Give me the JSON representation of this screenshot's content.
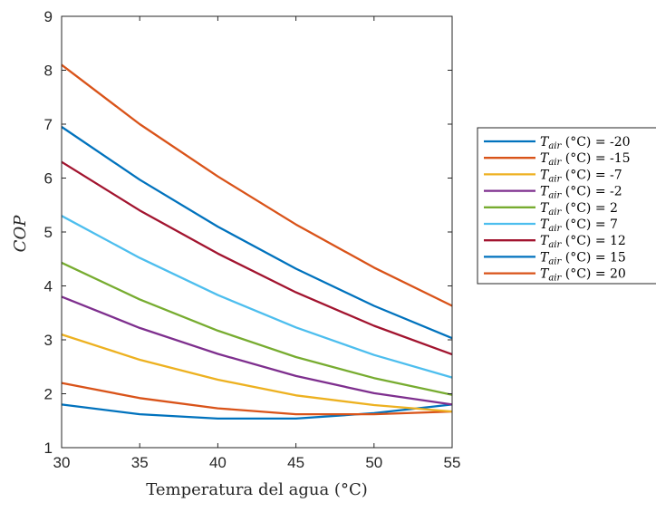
{
  "chart_data": {
    "type": "line",
    "xlabel": "Temperatura del agua (°C)",
    "ylabel": "COP",
    "xlim": [
      30,
      55
    ],
    "ylim": [
      1,
      9
    ],
    "x_ticks": [
      30,
      35,
      40,
      45,
      50,
      55
    ],
    "y_ticks": [
      1,
      2,
      3,
      4,
      5,
      6,
      7,
      8,
      9
    ],
    "grid": false,
    "legend_position": "outside-right",
    "x": [
      30,
      35,
      40,
      45,
      50,
      55
    ],
    "series": [
      {
        "name": "T_air (°C) = -20",
        "legend_value": "-20",
        "color": "#0072BD",
        "values": [
          1.8,
          1.62,
          1.54,
          1.54,
          1.64,
          1.8
        ]
      },
      {
        "name": "T_air (°C) = -15",
        "legend_value": "-15",
        "color": "#D95319",
        "values": [
          2.2,
          1.92,
          1.73,
          1.62,
          1.62,
          1.67
        ]
      },
      {
        "name": "T_air (°C) = -7",
        "legend_value": "-7",
        "color": "#EDB120",
        "values": [
          3.1,
          2.63,
          2.26,
          1.97,
          1.79,
          1.67
        ]
      },
      {
        "name": "T_air (°C) = -2",
        "legend_value": "-2",
        "color": "#7E2F8E",
        "values": [
          3.8,
          3.22,
          2.74,
          2.33,
          2.01,
          1.8
        ]
      },
      {
        "name": "T_air (°C) = 2",
        "legend_value": "2",
        "color": "#77AC30",
        "values": [
          4.43,
          3.75,
          3.17,
          2.68,
          2.29,
          1.98
        ]
      },
      {
        "name": "T_air (°C) = 7",
        "legend_value": "7",
        "color": "#4DBEEE",
        "values": [
          5.3,
          4.52,
          3.83,
          3.23,
          2.72,
          2.3
        ]
      },
      {
        "name": "T_air (°C) = 12",
        "legend_value": "12",
        "color": "#A2142F",
        "values": [
          6.3,
          5.4,
          4.6,
          3.88,
          3.26,
          2.73
        ]
      },
      {
        "name": "T_air (°C) = 15",
        "legend_value": "15",
        "color": "#0072BD",
        "values": [
          6.95,
          5.97,
          5.1,
          4.32,
          3.63,
          3.03
        ]
      },
      {
        "name": "T_air (°C) = 20",
        "legend_value": "20",
        "color": "#D95319",
        "values": [
          8.1,
          7.0,
          6.03,
          5.14,
          4.34,
          3.63
        ]
      }
    ]
  },
  "legend": {
    "var": "T",
    "sub": "air",
    "unit": "(°C) ="
  }
}
